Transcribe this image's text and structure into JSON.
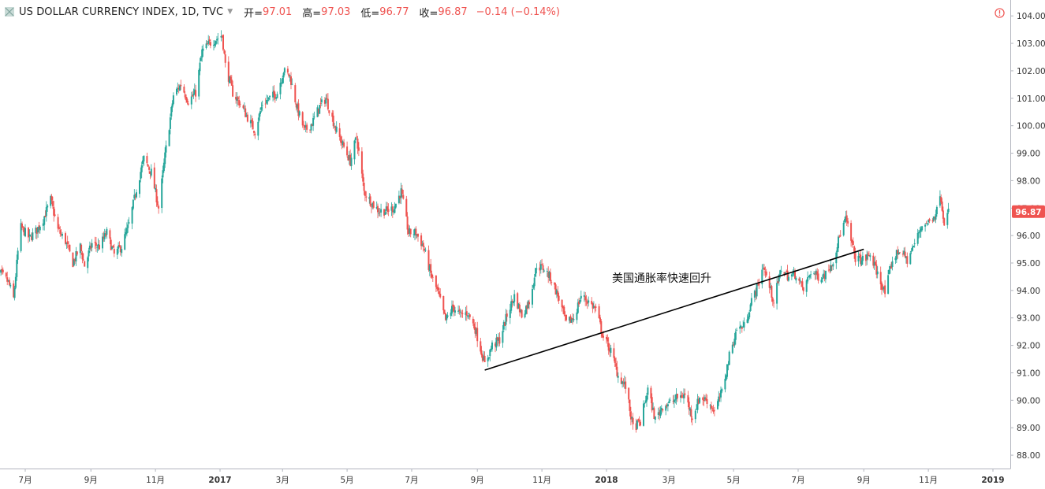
{
  "header": {
    "title": "US DOLLAR CURRENCY INDEX, 1D, TVC",
    "open_label": "开=",
    "open_value": "97.01",
    "high_label": "高=",
    "high_value": "97.03",
    "low_label": "低=",
    "low_value": "96.77",
    "close_label": "收=",
    "close_value": "96.87",
    "change": "−0.14 (−0.14%)"
  },
  "colors": {
    "up": "#26a69a",
    "down": "#ef5350",
    "line": "#000000",
    "axis": "#b2b5be"
  },
  "icons": {
    "symbol": "symbol-square-icon",
    "alert": "alert-circle-icon"
  },
  "chart_data": {
    "type": "candlestick",
    "title": "US DOLLAR CURRENCY INDEX, 1D, TVC",
    "ylim": [
      87.6,
      104.35
    ],
    "y_ticks": [
      "104.00",
      "103.00",
      "102.00",
      "101.00",
      "100.00",
      "99.00",
      "98.00",
      "97.00",
      "96.00",
      "95.00",
      "94.00",
      "93.00",
      "92.00",
      "91.00",
      "90.00",
      "89.00",
      "88.00"
    ],
    "x_ticks": [
      {
        "label": "7月",
        "date": "2016-07-01",
        "year": false
      },
      {
        "label": "9月",
        "date": "2016-09-01",
        "year": false
      },
      {
        "label": "11月",
        "date": "2016-11-01",
        "year": false
      },
      {
        "label": "2017",
        "date": "2017-01-01",
        "year": true
      },
      {
        "label": "3月",
        "date": "2017-03-01",
        "year": false
      },
      {
        "label": "5月",
        "date": "2017-05-01",
        "year": false
      },
      {
        "label": "7月",
        "date": "2017-07-01",
        "year": false
      },
      {
        "label": "9月",
        "date": "2017-09-01",
        "year": false
      },
      {
        "label": "11月",
        "date": "2017-11-01",
        "year": false
      },
      {
        "label": "2018",
        "date": "2018-01-01",
        "year": true
      },
      {
        "label": "3月",
        "date": "2018-03-01",
        "year": false
      },
      {
        "label": "5月",
        "date": "2018-05-01",
        "year": false
      },
      {
        "label": "7月",
        "date": "2018-07-01",
        "year": false
      },
      {
        "label": "9月",
        "date": "2018-09-01",
        "year": false
      },
      {
        "label": "11月",
        "date": "2018-11-01",
        "year": false
      },
      {
        "label": "2019",
        "date": "2019-01-01",
        "year": true
      }
    ],
    "last_price": "96.87",
    "price_path": [
      [
        "2016-06-01",
        94.2
      ],
      [
        "2016-06-08",
        94.6
      ],
      [
        "2016-06-15",
        94.3
      ],
      [
        "2016-06-20",
        93.7
      ],
      [
        "2016-06-24",
        95.4
      ],
      [
        "2016-06-27",
        96.3
      ],
      [
        "2016-07-05",
        95.9
      ],
      [
        "2016-07-12",
        96.2
      ],
      [
        "2016-07-18",
        96.6
      ],
      [
        "2016-07-25",
        97.3
      ],
      [
        "2016-08-01",
        96.2
      ],
      [
        "2016-08-08",
        95.8
      ],
      [
        "2016-08-15",
        95.0
      ],
      [
        "2016-08-22",
        95.6
      ],
      [
        "2016-08-26",
        94.9
      ],
      [
        "2016-09-02",
        95.7
      ],
      [
        "2016-09-09",
        95.6
      ],
      [
        "2016-09-16",
        96.1
      ],
      [
        "2016-09-23",
        95.3
      ],
      [
        "2016-09-30",
        95.6
      ],
      [
        "2016-10-07",
        96.4
      ],
      [
        "2016-10-14",
        97.7
      ],
      [
        "2016-10-21",
        98.8
      ],
      [
        "2016-10-28",
        98.3
      ],
      [
        "2016-11-04",
        97.0
      ],
      [
        "2016-11-10",
        98.9
      ],
      [
        "2016-11-18",
        101.1
      ],
      [
        "2016-11-25",
        101.5
      ],
      [
        "2016-12-02",
        100.9
      ],
      [
        "2016-12-09",
        101.2
      ],
      [
        "2016-12-15",
        102.7
      ],
      [
        "2016-12-22",
        103.0
      ],
      [
        "2017-01-03",
        103.3
      ],
      [
        "2017-01-06",
        102.2
      ],
      [
        "2017-01-13",
        101.2
      ],
      [
        "2017-01-20",
        100.8
      ],
      [
        "2017-01-27",
        100.3
      ],
      [
        "2017-02-03",
        99.8
      ],
      [
        "2017-02-10",
        100.8
      ],
      [
        "2017-02-17",
        101.0
      ],
      [
        "2017-02-24",
        101.2
      ],
      [
        "2017-03-02",
        102.0
      ],
      [
        "2017-03-08",
        101.8
      ],
      [
        "2017-03-15",
        100.6
      ],
      [
        "2017-03-22",
        99.8
      ],
      [
        "2017-03-29",
        100.1
      ],
      [
        "2017-04-05",
        100.7
      ],
      [
        "2017-04-11",
        101.0
      ],
      [
        "2017-04-20",
        99.9
      ],
      [
        "2017-04-27",
        99.3
      ],
      [
        "2017-05-04",
        98.7
      ],
      [
        "2017-05-10",
        99.6
      ],
      [
        "2017-05-17",
        97.6
      ],
      [
        "2017-05-24",
        97.2
      ],
      [
        "2017-05-31",
        96.9
      ],
      [
        "2017-06-07",
        96.9
      ],
      [
        "2017-06-14",
        97.0
      ],
      [
        "2017-06-21",
        97.6
      ],
      [
        "2017-06-28",
        96.1
      ],
      [
        "2017-07-05",
        96.1
      ],
      [
        "2017-07-12",
        95.6
      ],
      [
        "2017-07-19",
        94.6
      ],
      [
        "2017-07-26",
        93.9
      ],
      [
        "2017-08-02",
        92.9
      ],
      [
        "2017-08-09",
        93.4
      ],
      [
        "2017-08-16",
        93.1
      ],
      [
        "2017-08-23",
        93.2
      ],
      [
        "2017-08-30",
        92.6
      ],
      [
        "2017-09-06",
        91.6
      ],
      [
        "2017-09-08",
        91.3
      ],
      [
        "2017-09-15",
        92.0
      ],
      [
        "2017-09-22",
        92.2
      ],
      [
        "2017-09-29",
        93.1
      ],
      [
        "2017-10-06",
        93.8
      ],
      [
        "2017-10-13",
        93.1
      ],
      [
        "2017-10-20",
        93.6
      ],
      [
        "2017-10-27",
        94.9
      ],
      [
        "2017-11-03",
        94.8
      ],
      [
        "2017-11-10",
        94.4
      ],
      [
        "2017-11-17",
        93.7
      ],
      [
        "2017-11-24",
        92.8
      ],
      [
        "2017-12-01",
        93.0
      ],
      [
        "2017-12-08",
        93.8
      ],
      [
        "2017-12-15",
        93.6
      ],
      [
        "2017-12-22",
        93.3
      ],
      [
        "2017-12-29",
        92.3
      ],
      [
        "2018-01-05",
        91.8
      ],
      [
        "2018-01-12",
        90.9
      ],
      [
        "2018-01-19",
        90.5
      ],
      [
        "2018-01-26",
        89.0
      ],
      [
        "2018-02-02",
        89.2
      ],
      [
        "2018-02-09",
        90.4
      ],
      [
        "2018-02-16",
        89.3
      ],
      [
        "2018-02-23",
        89.8
      ],
      [
        "2018-03-02",
        89.9
      ],
      [
        "2018-03-09",
        90.1
      ],
      [
        "2018-03-16",
        90.2
      ],
      [
        "2018-03-23",
        89.4
      ],
      [
        "2018-03-30",
        90.1
      ],
      [
        "2018-04-06",
        90.0
      ],
      [
        "2018-04-13",
        89.6
      ],
      [
        "2018-04-20",
        90.3
      ],
      [
        "2018-04-27",
        91.6
      ],
      [
        "2018-05-04",
        92.6
      ],
      [
        "2018-05-11",
        92.7
      ],
      [
        "2018-05-18",
        93.6
      ],
      [
        "2018-05-25",
        94.3
      ],
      [
        "2018-05-29",
        94.9
      ],
      [
        "2018-06-08",
        93.6
      ],
      [
        "2018-06-15",
        94.8
      ],
      [
        "2018-06-22",
        94.5
      ],
      [
        "2018-06-29",
        94.6
      ],
      [
        "2018-07-06",
        94.0
      ],
      [
        "2018-07-13",
        94.7
      ],
      [
        "2018-07-20",
        94.5
      ],
      [
        "2018-07-27",
        94.6
      ],
      [
        "2018-08-03",
        95.1
      ],
      [
        "2018-08-10",
        96.1
      ],
      [
        "2018-08-15",
        96.6
      ],
      [
        "2018-08-24",
        95.2
      ],
      [
        "2018-08-31",
        95.1
      ],
      [
        "2018-09-07",
        95.3
      ],
      [
        "2018-09-14",
        94.6
      ],
      [
        "2018-09-21",
        93.9
      ],
      [
        "2018-09-28",
        95.1
      ],
      [
        "2018-10-05",
        95.5
      ],
      [
        "2018-10-12",
        95.1
      ],
      [
        "2018-10-19",
        95.7
      ],
      [
        "2018-10-26",
        96.4
      ],
      [
        "2018-11-02",
        96.5
      ],
      [
        "2018-11-09",
        96.9
      ],
      [
        "2018-11-12",
        97.6
      ],
      [
        "2018-11-16",
        96.5
      ],
      [
        "2018-11-20",
        96.87
      ]
    ],
    "trendline": {
      "start": [
        "2017-09-08",
        91.1
      ],
      "end": [
        "2018-09-01",
        95.5
      ]
    },
    "annotations": [
      {
        "text": "美国通胀率快速回升"
      }
    ]
  }
}
